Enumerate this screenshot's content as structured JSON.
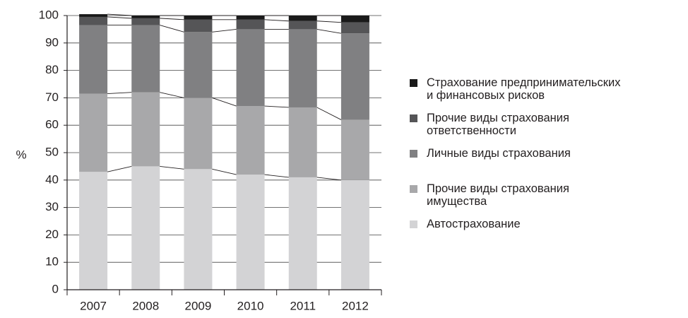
{
  "chart_data": {
    "type": "stacked_bar",
    "y_label": "%",
    "categories": [
      "2007",
      "2008",
      "2009",
      "2010",
      "2011",
      "2012"
    ],
    "series": [
      {
        "name": "Автострахование",
        "color": "#d3d3d5",
        "values": [
          43,
          45,
          44,
          42,
          41,
          40
        ]
      },
      {
        "name": "Прочие виды страхования\nимущества",
        "color": "#a8a8aa",
        "values": [
          28.5,
          27,
          26,
          25,
          25.5,
          22
        ]
      },
      {
        "name": "Личные виды страхования",
        "color": "#808082",
        "values": [
          25,
          24.5,
          24,
          28,
          28.5,
          31.5
        ]
      },
      {
        "name": "Прочие виды страхования\nответственности",
        "color": "#555557",
        "values": [
          3,
          2.5,
          4.5,
          3.5,
          3,
          4
        ]
      },
      {
        "name": "Страхование предпринимательских\nи финансовых рисков",
        "color": "#1a1a1a",
        "values": [
          1,
          1,
          1.5,
          1.5,
          2,
          2.5
        ]
      }
    ],
    "ylim": [
      0,
      100
    ],
    "yticks": [
      0,
      10,
      20,
      30,
      40,
      50,
      60,
      70,
      80,
      90,
      100
    ],
    "grid": true
  }
}
